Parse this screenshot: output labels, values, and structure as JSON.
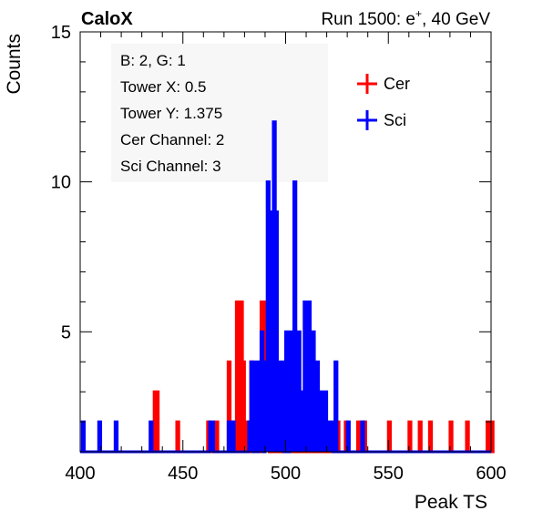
{
  "header": {
    "brand": "CaloX",
    "run_prefix": "Run 1500: e",
    "run_superscript": "+",
    "run_suffix": ", 40 GeV"
  },
  "info_box": {
    "lines": [
      "B: 2, G: 1",
      "Tower X: 0.5",
      "Tower Y: 1.375",
      "Cer Channel: 2",
      "Sci Channel: 3"
    ]
  },
  "chart_data": {
    "type": "line",
    "xlabel": "Peak TS",
    "ylabel": "Counts",
    "xlim": [
      400,
      600
    ],
    "ylim": [
      1,
      15
    ],
    "x_ticks": [
      400,
      450,
      500,
      550,
      600
    ],
    "y_ticks": [
      5,
      10,
      15
    ],
    "legend": {
      "position": "top-right"
    },
    "series": [
      {
        "name": "Cer",
        "color": "#ff0000",
        "points": [
          [
            436,
            3
          ],
          [
            437,
            3
          ],
          [
            447,
            2
          ],
          [
            462,
            2
          ],
          [
            466,
            2
          ],
          [
            472,
            4
          ],
          [
            474,
            2
          ],
          [
            475,
            2
          ],
          [
            476,
            6
          ],
          [
            478,
            6
          ],
          [
            479,
            4
          ],
          [
            480,
            2
          ],
          [
            481,
            2
          ],
          [
            483,
            4
          ],
          [
            484,
            2
          ],
          [
            486,
            2
          ],
          [
            488,
            6
          ],
          [
            490,
            6
          ],
          [
            491,
            2
          ],
          [
            500,
            2
          ],
          [
            503,
            2
          ],
          [
            508,
            2
          ],
          [
            513,
            2
          ],
          [
            515,
            2
          ],
          [
            518,
            2
          ],
          [
            525,
            2
          ],
          [
            529,
            2
          ],
          [
            535,
            2
          ],
          [
            538,
            2
          ],
          [
            550,
            2
          ],
          [
            560,
            2
          ],
          [
            565,
            2
          ],
          [
            570,
            2
          ],
          [
            580,
            2
          ],
          [
            588,
            2
          ],
          [
            598,
            2
          ],
          [
            600,
            2
          ]
        ]
      },
      {
        "name": "Sci",
        "color": "#0000ff",
        "points": [
          [
            401,
            2
          ],
          [
            409,
            2
          ],
          [
            417,
            2
          ],
          [
            434,
            2
          ],
          [
            463,
            2
          ],
          [
            464,
            2
          ],
          [
            472,
            2
          ],
          [
            474,
            2
          ],
          [
            482,
            2
          ],
          [
            483,
            4
          ],
          [
            485,
            4
          ],
          [
            487,
            4
          ],
          [
            488,
            5
          ],
          [
            490,
            4
          ],
          [
            491,
            10
          ],
          [
            492,
            9
          ],
          [
            493,
            5
          ],
          [
            494,
            12
          ],
          [
            495,
            9
          ],
          [
            496,
            4
          ],
          [
            497,
            4
          ],
          [
            498,
            4
          ],
          [
            500,
            5
          ],
          [
            502,
            5
          ],
          [
            503,
            4
          ],
          [
            504,
            10
          ],
          [
            505,
            5
          ],
          [
            506,
            5
          ],
          [
            507,
            3
          ],
          [
            508,
            3
          ],
          [
            509,
            6
          ],
          [
            510,
            3
          ],
          [
            511,
            6
          ],
          [
            512,
            3
          ],
          [
            513,
            5
          ],
          [
            514,
            3
          ],
          [
            515,
            4
          ],
          [
            516,
            3
          ],
          [
            517,
            3
          ],
          [
            518,
            2
          ],
          [
            519,
            3
          ],
          [
            520,
            2
          ],
          [
            521,
            2
          ],
          [
            522,
            2
          ],
          [
            524,
            4
          ],
          [
            530,
            2
          ],
          [
            537,
            2
          ]
        ]
      }
    ]
  }
}
